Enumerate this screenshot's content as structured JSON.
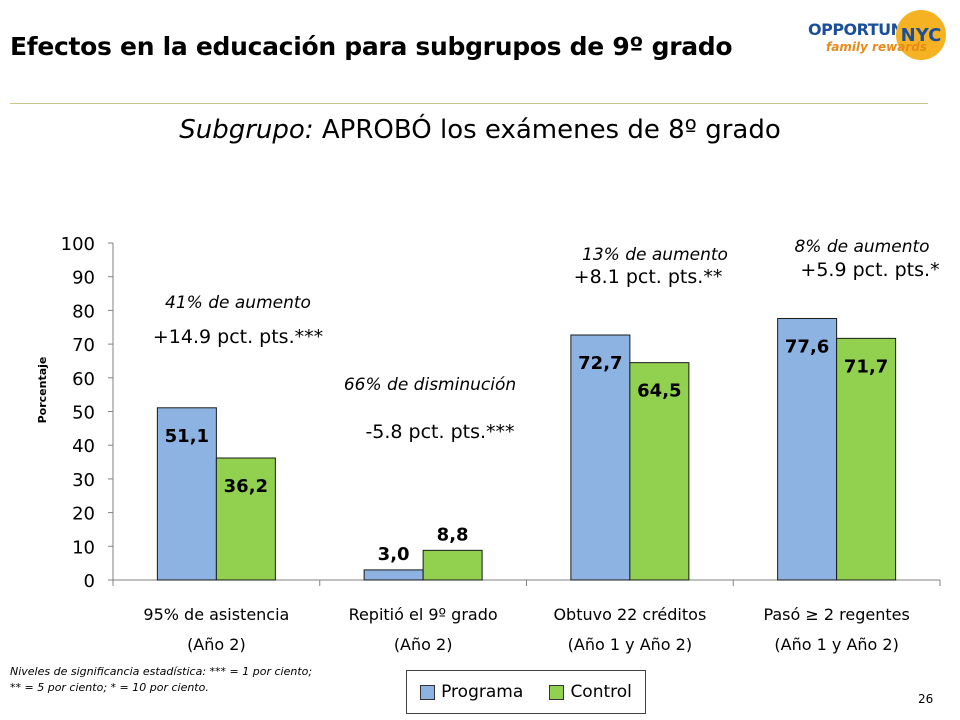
{
  "slide": {
    "title": "Efectos en la educación para subgrupos de 9º grado",
    "logo_word": "OPPORTUNITY",
    "logo_circle": "NYC",
    "logo_sub": "family rewards",
    "subtitle_italic": "Subgrupo:",
    "subtitle_rest": "APROBÓ los exámenes de 8º grado",
    "footnote_line1": "Niveles de significancia estadística: *** = 1 por ciento;",
    "footnote_line2": "** = 5 por ciento; * = 10 por ciento.",
    "page_number": "26"
  },
  "legend": {
    "programa_label": "Programa",
    "control_label": "Control"
  },
  "chart_data": {
    "type": "bar",
    "ylabel": "Porcentaje",
    "ylim": [
      0,
      100
    ],
    "yticks": [
      0,
      10,
      20,
      30,
      40,
      50,
      60,
      70,
      80,
      90,
      100
    ],
    "categories": [
      {
        "line1": "95% de asistencia",
        "line2": "(Año 2)"
      },
      {
        "line1": "Repitió el 9º grado",
        "line2": "(Año 2)"
      },
      {
        "line1": "Obtuvo 22 créditos",
        "line2": "(Año 1 y Año 2)"
      },
      {
        "line1": "Pasó ≥ 2 regentes",
        "line2": "(Año 1 y Año 2)"
      }
    ],
    "series": [
      {
        "name": "Programa",
        "color": "#8db3e2",
        "values": [
          51.1,
          3.0,
          72.7,
          77.6
        ],
        "labels": [
          "51,1",
          "3,0",
          "72,7",
          "77,6"
        ]
      },
      {
        "name": "Control",
        "color": "#92d050",
        "values": [
          36.2,
          8.8,
          64.5,
          71.7
        ],
        "labels": [
          "36,2",
          "8,8",
          "64,5",
          "71,7"
        ]
      }
    ],
    "annotations": [
      {
        "pct": "41% de aumento",
        "pts": "+14.9 pct. pts.***"
      },
      {
        "pct": "66% de disminución",
        "pts": "-5.8 pct. pts.***"
      },
      {
        "pct": "13% de aumento",
        "pts": "+8.1 pct. pts.**"
      },
      {
        "pct": "8% de aumento",
        "pts": "+5.9 pct. pts.*"
      }
    ]
  }
}
